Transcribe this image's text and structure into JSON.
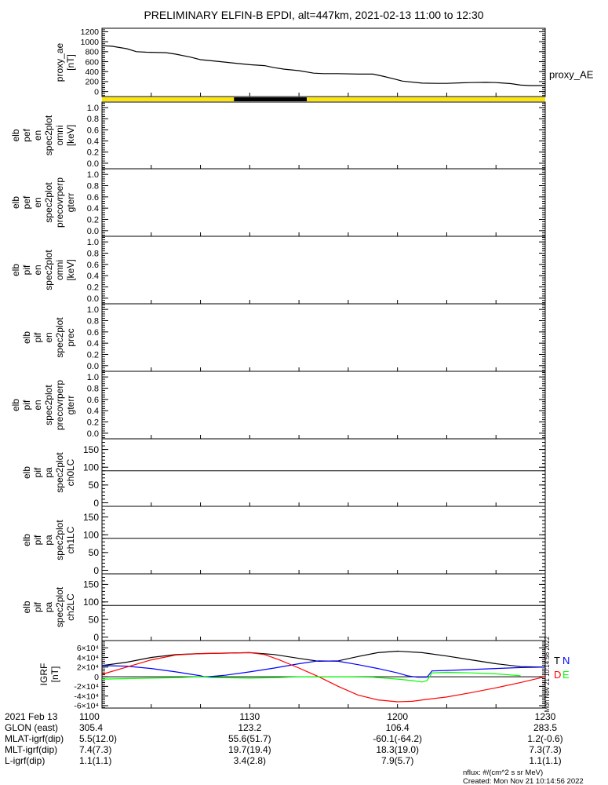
{
  "title": "PRELIMINARY ELFIN-B EPDI, alt=447km, 2021-02-13 11:00 to 12:30",
  "colors": {
    "black": "#000000",
    "red": "#ff0000",
    "blue": "#0000ff",
    "green": "#00ff00",
    "yellow": "#ffe600"
  },
  "time_axis": {
    "start_minutes": 0,
    "end_minutes": 90,
    "tick_labels": [
      "1100",
      "1130",
      "1200",
      "1230"
    ],
    "tick_minutes": [
      0,
      30,
      60,
      90
    ]
  },
  "chart_data": [
    {
      "type": "line",
      "title": "proxy_ae",
      "ylabel": [
        "proxy_ae",
        "[nT]"
      ],
      "legend": "proxy_AE",
      "ylim": [
        -100,
        1270
      ],
      "yticks": [
        0,
        200,
        400,
        600,
        800,
        1000,
        1200
      ],
      "yticklabels": [
        "0",
        "200",
        "400",
        "600",
        "800",
        "1000",
        "1200"
      ],
      "series": [
        {
          "name": "proxy_AE",
          "color": "#000000",
          "x": [
            0,
            2,
            5,
            7,
            9,
            13,
            15,
            18,
            20,
            24,
            27,
            30,
            33,
            35,
            37,
            40,
            43,
            45,
            48,
            52,
            55,
            57,
            59,
            61,
            65,
            68,
            70,
            73,
            75,
            78,
            80,
            83,
            85,
            87,
            90
          ],
          "y": [
            920,
            910,
            860,
            800,
            790,
            780,
            750,
            690,
            640,
            600,
            570,
            540,
            520,
            480,
            450,
            420,
            370,
            360,
            360,
            350,
            350,
            310,
            260,
            210,
            170,
            165,
            165,
            175,
            180,
            185,
            180,
            160,
            130,
            120,
            120
          ]
        }
      ]
    },
    {
      "type": "bar",
      "title": "science zone indicator",
      "segments": [
        {
          "from": 0,
          "to": 26.8,
          "color": "#ffe600"
        },
        {
          "from": 26.8,
          "to": 41.6,
          "color": "#000000"
        },
        {
          "from": 41.6,
          "to": 90,
          "color": "#ffe600"
        }
      ]
    },
    {
      "type": "heatmap",
      "ylabel": [
        "elb",
        "pef",
        "en",
        "spec2plot",
        "omni",
        "[keV]"
      ],
      "ylim": [
        0,
        1
      ],
      "yticks": [
        0,
        0.2,
        0.4,
        0.6,
        0.8,
        1.0
      ],
      "yticklabels": [
        "0.0",
        "0.2",
        "0.4",
        "0.6",
        "0.8",
        "1.0"
      ],
      "values": []
    },
    {
      "type": "heatmap",
      "ylabel": [
        "elb",
        "pef",
        "en",
        "spec2plot",
        "precovrperp",
        "gterr"
      ],
      "ylim": [
        0,
        1
      ],
      "yticks": [
        0,
        0.2,
        0.4,
        0.6,
        0.8,
        1.0
      ],
      "yticklabels": [
        "0.0",
        "0.2",
        "0.4",
        "0.6",
        "0.8",
        "1.0"
      ],
      "values": []
    },
    {
      "type": "heatmap",
      "ylabel": [
        "elb",
        "pif",
        "en",
        "spec2plot",
        "omni",
        "[keV]"
      ],
      "ylim": [
        0,
        1
      ],
      "yticks": [
        0,
        0.2,
        0.4,
        0.6,
        0.8,
        1.0
      ],
      "yticklabels": [
        "0.0",
        "0.2",
        "0.4",
        "0.6",
        "0.8",
        "1.0"
      ],
      "values": []
    },
    {
      "type": "heatmap",
      "ylabel": [
        "elb",
        "pif",
        "en",
        "spec2plot",
        "prec"
      ],
      "ylim": [
        0,
        1
      ],
      "yticks": [
        0,
        0.2,
        0.4,
        0.6,
        0.8,
        1.0
      ],
      "yticklabels": [
        "0.0",
        "0.2",
        "0.4",
        "0.6",
        "0.8",
        "1.0"
      ],
      "values": []
    },
    {
      "type": "heatmap",
      "ylabel": [
        "elb",
        "pif",
        "en",
        "spec2plot",
        "precovrperp",
        "gterr"
      ],
      "ylim": [
        0,
        1
      ],
      "yticks": [
        0,
        0.2,
        0.4,
        0.6,
        0.8,
        1.0
      ],
      "yticklabels": [
        "0.0",
        "0.2",
        "0.4",
        "0.6",
        "0.8",
        "1.0"
      ],
      "values": []
    },
    {
      "type": "heatmap",
      "ylabel": [
        "elb",
        "pif",
        "pa",
        "spec2plot",
        "ch0LC"
      ],
      "ylim": [
        -4,
        180
      ],
      "yticks": [
        0,
        50,
        100,
        150
      ],
      "yticklabels": [
        "0",
        "50",
        "100",
        "150"
      ],
      "hline": 90,
      "values": []
    },
    {
      "type": "heatmap",
      "ylabel": [
        "elb",
        "pif",
        "pa",
        "spec2plot",
        "ch1LC"
      ],
      "ylim": [
        -4,
        180
      ],
      "yticks": [
        0,
        50,
        100,
        150
      ],
      "yticklabels": [
        "0",
        "50",
        "100",
        "150"
      ],
      "hline": 90,
      "values": []
    },
    {
      "type": "heatmap",
      "ylabel": [
        "elb",
        "pif",
        "pa",
        "spec2plot",
        "ch2LC"
      ],
      "ylim": [
        -4,
        180
      ],
      "yticks": [
        0,
        50,
        100,
        150
      ],
      "yticklabels": [
        "0",
        "50",
        "100",
        "150"
      ],
      "hline": 90,
      "values": []
    },
    {
      "type": "line",
      "title": "IGRF",
      "ylabel": [
        "IGRF",
        "[nT]"
      ],
      "ylim": [
        -65000,
        65000
      ],
      "yticks": [
        -60000,
        -40000,
        -20000,
        0,
        20000,
        40000,
        60000
      ],
      "yticklabels": [
        "-6×10⁴",
        "-4×10⁴",
        "-2×10⁴",
        "0",
        "2×10⁴",
        "4×10⁴",
        "6×10⁴"
      ],
      "hline": 0,
      "legend": [
        {
          "label": "T",
          "color": "#000000"
        },
        {
          "label": "N",
          "color": "#0000ff"
        },
        {
          "label": "D",
          "color": "#ff0000"
        },
        {
          "label": "E",
          "color": "#00ff00"
        }
      ],
      "series": [
        {
          "name": "T",
          "color": "#000000",
          "x": [
            0,
            5,
            10,
            15,
            20,
            25,
            30,
            35,
            40,
            44,
            48,
            52,
            56,
            60,
            65,
            70,
            75,
            80,
            85,
            90
          ],
          "y": [
            23000,
            30000,
            40000,
            46000,
            48000,
            49000,
            50000,
            46000,
            38000,
            32000,
            33000,
            42000,
            50000,
            53000,
            50000,
            43000,
            35000,
            27000,
            21000,
            20000
          ]
        },
        {
          "name": "N",
          "color": "#0000ff",
          "x": [
            0,
            5,
            10,
            15,
            20,
            21,
            25,
            30,
            35,
            40,
            44,
            48,
            52,
            56,
            60,
            62,
            64,
            66,
            67,
            70,
            75,
            80,
            85,
            90
          ],
          "y": [
            23000,
            22000,
            17000,
            10000,
            2000,
            -500,
            3000,
            10000,
            18000,
            27000,
            33000,
            32000,
            25000,
            17000,
            8000,
            2000,
            -1000,
            -1000,
            12000,
            13000,
            15000,
            17000,
            19000,
            20000
          ]
        },
        {
          "name": "D",
          "color": "#ff0000",
          "x": [
            0,
            5,
            10,
            15,
            20,
            25,
            30,
            33,
            36,
            40,
            44,
            48,
            52,
            56,
            60,
            63,
            66,
            70,
            75,
            80,
            85,
            90
          ],
          "y": [
            5000,
            20000,
            35000,
            45000,
            48000,
            49000,
            50000,
            46000,
            35000,
            18000,
            0,
            -20000,
            -38000,
            -48000,
            -52000,
            -51000,
            -47000,
            -42000,
            -33000,
            -23000,
            -12000,
            0
          ]
        },
        {
          "name": "E",
          "color": "#00ff00",
          "x": [
            0,
            5,
            10,
            15,
            20,
            22,
            25,
            30,
            35,
            40,
            45,
            50,
            55,
            60,
            63,
            65,
            66,
            67,
            70,
            75,
            80,
            85
          ],
          "y": [
            -5000,
            -4000,
            -3000,
            -2000,
            0,
            -1500,
            -2000,
            -3000,
            -2000,
            0,
            0,
            0,
            -1000,
            -5000,
            -8000,
            -11000,
            -8000,
            8000,
            9000,
            8000,
            6000,
            2000
          ]
        }
      ]
    }
  ],
  "ephemeris": {
    "rows": [
      {
        "label": "2021 Feb 13",
        "values": [
          "1100",
          "1130",
          "1200",
          "1230"
        ]
      },
      {
        "label": "GLON (east)",
        "values": [
          "305.4",
          "123.2",
          "106.4",
          "283.5"
        ]
      },
      {
        "label": "MLAT-igrf(dip)",
        "values": [
          "5.5(12.0)",
          "55.6(51.7)",
          "-60.1(-64.2)",
          "1.2(-0.6)"
        ]
      },
      {
        "label": "MLT-igrf(dip)",
        "values": [
          "7.4(7.3)",
          "19.7(19.4)",
          "18.3(19.0)",
          "7.3(7.3)"
        ]
      },
      {
        "label": "L-igrf(dip)",
        "values": [
          "1.1(1.1)",
          "3.4(2.8)",
          "7.9(5.7)",
          "1.1(1.1)"
        ]
      }
    ]
  },
  "footer": {
    "units": "nflux: #/(cm^2 s sr MeV)",
    "created": "Created: Mon Nov 21 10:14:56 2022",
    "side_stamp": "Mon Nov 21 10:14:56 2022"
  }
}
